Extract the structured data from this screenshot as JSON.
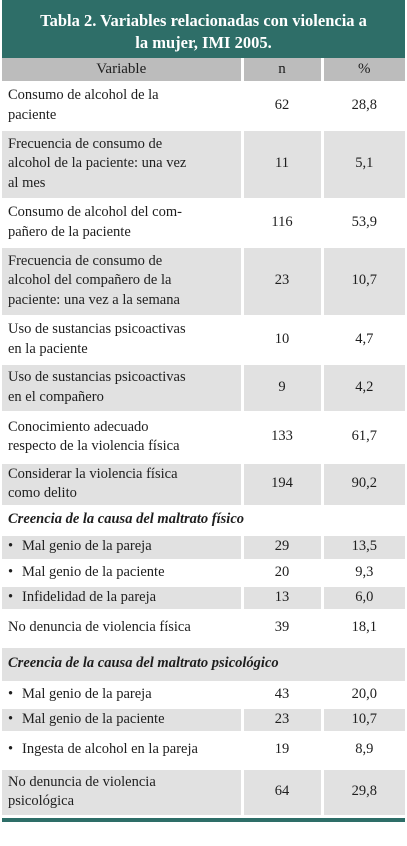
{
  "title_line1": "Tabla 2. Variables relacionadas con violencia a",
  "title_line2": "la mujer, IMI 2005.",
  "headers": {
    "variable": "Variable",
    "n": "n",
    "pct": "%"
  },
  "bullet": "•",
  "rows": [
    {
      "label_lines": [
        "Consumo de alcohol de la",
        "paciente"
      ],
      "n": "62",
      "pct": "28,8"
    },
    {
      "label_lines": [
        "Frecuencia de consumo de",
        "alcohol de la paciente: una vez",
        "al mes"
      ],
      "n": "11",
      "pct": "5,1"
    },
    {
      "label_lines": [
        "Consumo de alcohol del com-",
        "pañero de la paciente"
      ],
      "n": "116",
      "pct": "53,9"
    },
    {
      "label_lines": [
        "Frecuencia de consumo de",
        "alcohol del compañero de la",
        "paciente: una vez a la semana"
      ],
      "n": "23",
      "pct": "10,7"
    },
    {
      "label_lines": [
        "Uso de sustancias psicoactivas",
        "en la paciente"
      ],
      "n": "10",
      "pct": "4,7"
    },
    {
      "label_lines": [
        "Uso de sustancias psicoactivas",
        "en el compañero"
      ],
      "n": "9",
      "pct": "4,2"
    },
    {
      "label_lines": [
        "Conocimiento adecuado",
        "respecto de la violencia física"
      ],
      "n": "133",
      "pct": "61,7"
    },
    {
      "label_lines": [
        "Considerar la violencia física",
        "como delito"
      ],
      "n": "194",
      "pct": "90,2"
    }
  ],
  "section1": {
    "title": "Creencia de la causa del maltrato físico",
    "items": [
      {
        "label": "Mal genio de la pareja",
        "n": "29",
        "pct": "13,5"
      },
      {
        "label": "Mal genio de la paciente",
        "n": "20",
        "pct": "9,3"
      },
      {
        "label": "Infidelidad de la pareja",
        "n": "13",
        "pct": "6,0"
      }
    ],
    "after": {
      "label": "No denuncia de violencia física",
      "n": "39",
      "pct": "18,1"
    }
  },
  "section2": {
    "title": "Creencia de la causa del maltrato psicológico",
    "items": [
      {
        "label": "Mal genio de la pareja",
        "n": "43",
        "pct": "20,0"
      },
      {
        "label": "Mal genio de la paciente",
        "n": "23",
        "pct": "10,7"
      },
      {
        "label": "Ingesta de alcohol en la pareja",
        "n": "19",
        "pct": "8,9"
      }
    ],
    "after": {
      "label_lines": [
        "No denuncia de violencia",
        "psicológica"
      ],
      "n": "64",
      "pct": "29,8"
    }
  }
}
